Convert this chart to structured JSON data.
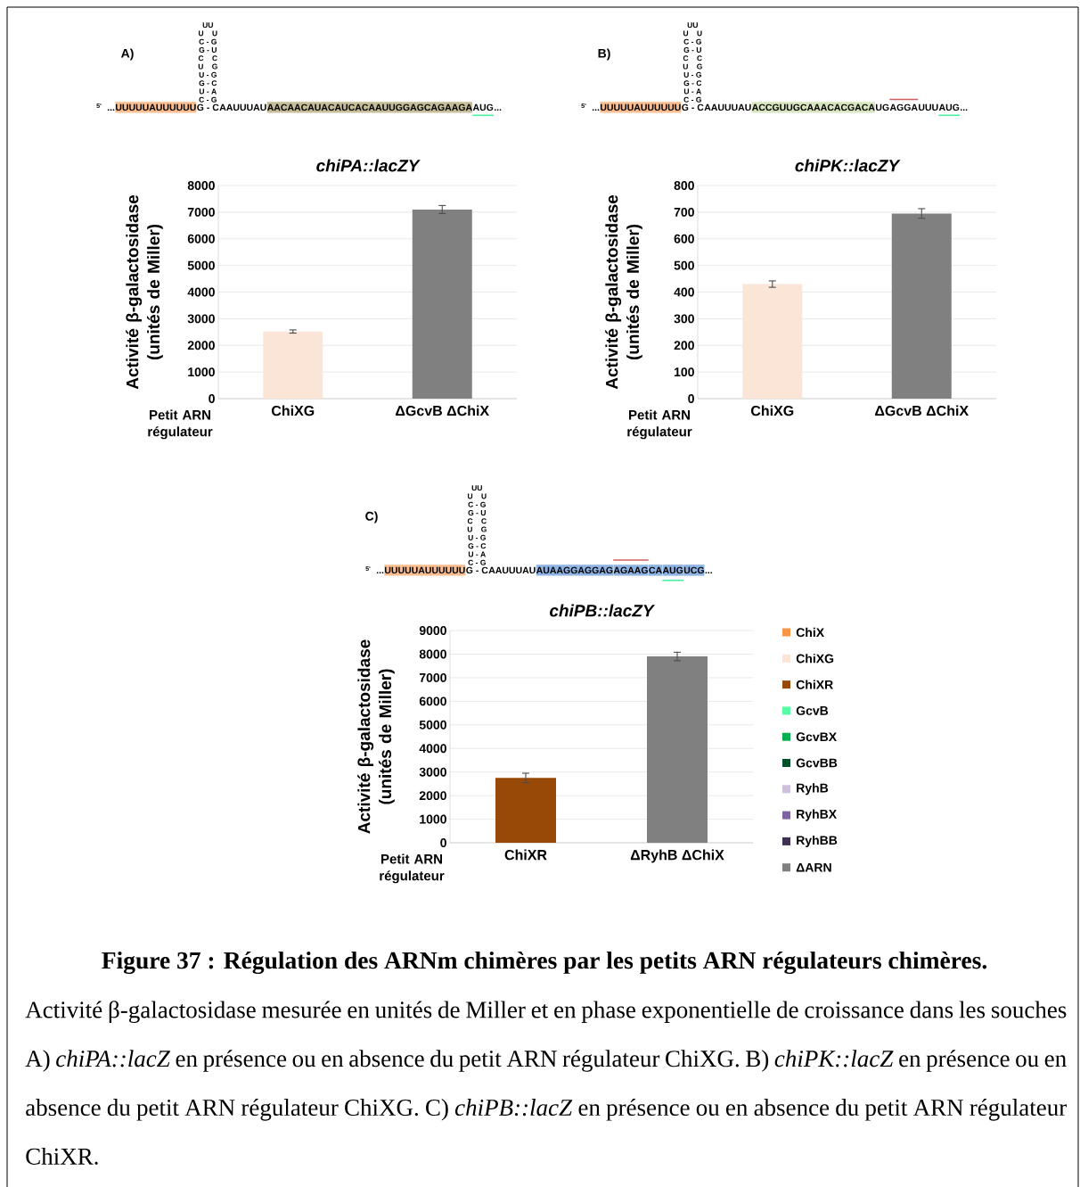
{
  "chart_data": [
    {
      "type": "bar",
      "title": "chiPA::lacZY",
      "xlabel": "Petit ARN régulateur",
      "ylabel": "Activité β-galactosidase (unités de Miller)",
      "categories": [
        "ChiXG",
        "ΔGcvB ΔChiX"
      ],
      "values": [
        2520,
        7100
      ],
      "colors": [
        "#fbe5d6",
        "#808080"
      ],
      "errors": [
        60,
        150
      ],
      "ylim": [
        0,
        8000
      ],
      "yticks": [
        0,
        1000,
        2000,
        3000,
        4000,
        5000,
        6000,
        7000,
        8000
      ],
      "grid": "y",
      "annotations": [
        "A)",
        "UU",
        "U U",
        "C - G",
        "G - U",
        "C C",
        "U G",
        "U - G",
        "G - C",
        "U - A",
        "C - G",
        "5'",
        "...",
        "UUUUUAUUUUUU",
        "G - C",
        "AAUUUAU",
        "AACAACAUACAUCACAAUUGGAGCAGAAGA",
        "AUG",
        "..."
      ]
    },
    {
      "type": "bar",
      "title": "chiPK::lacZY",
      "xlabel": "Petit ARN régulateur",
      "ylabel": "Activité β-galactosidase (unités de Miller)",
      "categories": [
        "ChiXG",
        "ΔGcvB ΔChiX"
      ],
      "values": [
        430,
        695
      ],
      "colors": [
        "#fbe5d6",
        "#808080"
      ],
      "errors": [
        12,
        18
      ],
      "ylim": [
        0,
        800
      ],
      "yticks": [
        0,
        100,
        200,
        300,
        400,
        500,
        600,
        700,
        800
      ],
      "grid": "y",
      "annotations": [
        "B)",
        "UU",
        "U U",
        "C - G",
        "G - U",
        "C C",
        "U G",
        "U - G",
        "G - C",
        "U - A",
        "C - G",
        "5'",
        "...",
        "UUUUUAUUUUUU",
        "G - C",
        "AAUUUAU",
        "ACCGUUGCAAACACGACA",
        "UG",
        "AGGA",
        "UUU",
        "AUG",
        "..."
      ]
    },
    {
      "type": "bar",
      "title": "chiPB::lacZY",
      "xlabel": "Petit ARN régulateur",
      "ylabel": "Activité β-galactosidase (unités de Miller)",
      "categories": [
        "ChiXR",
        "ΔRyhB ΔChiX"
      ],
      "ylim": [
        0,
        9000
      ],
      "yticks": [
        0,
        1000,
        2000,
        3000,
        4000,
        5000,
        6000,
        7000,
        8000,
        9000
      ],
      "grid": "y",
      "legend": "right",
      "series": [
        {
          "name": "ChiX",
          "color": "#f79646",
          "values": [
            null,
            null
          ]
        },
        {
          "name": "ChiXG",
          "color": "#fbe5d6",
          "values": [
            null,
            null
          ]
        },
        {
          "name": "ChiXR",
          "color": "#984807",
          "values": [
            2750,
            null
          ],
          "errors": [
            200,
            null
          ]
        },
        {
          "name": "GcvB",
          "color": "#57fca6",
          "values": [
            null,
            null
          ]
        },
        {
          "name": "GcvBX",
          "color": "#00b050",
          "values": [
            null,
            null
          ]
        },
        {
          "name": "GcvBB",
          "color": "#00502a",
          "values": [
            null,
            null
          ]
        },
        {
          "name": "RyhB",
          "color": "#ccc0da",
          "values": [
            null,
            null
          ]
        },
        {
          "name": "RyhBX",
          "color": "#8064a2",
          "values": [
            null,
            null
          ]
        },
        {
          "name": "RyhBB",
          "color": "#3f3151",
          "values": [
            null,
            null
          ]
        },
        {
          "name": "ΔARN",
          "color": "#808080",
          "values": [
            null,
            7900
          ],
          "errors": [
            null,
            180
          ]
        }
      ],
      "annotations": [
        "C)",
        "UU",
        "U U",
        "C - G",
        "G - U",
        "C C",
        "U G",
        "U - G",
        "G - C",
        "U - A",
        "C - G",
        "5'",
        "...",
        "UUUUUAUUUUUU",
        "G - C",
        "AAUUUAU",
        "AUAAGGAGGAG",
        "AGAAG",
        "CA",
        "AUG",
        "UCG",
        "..."
      ]
    },
    {
      "type": "other",
      "title": "Figure 37 : Régulation des ARNm chimères par les petits ARN régulateurs chimères.",
      "annotations": [
        "Activité β-galactosidase mesurée en unités de Miller et en phase exponentielle de croissance dans les souches A) *chiPA::lacZ* en présence ou en absence du petit ARN régulateur ChiXG. B) *chiPK::lacZ* en présence ou en absence du petit ARN régulateur ChiXG. C) *chiPB::lacZ* en présence ou en absence du petit ARN régulateur ChiXR."
      ]
    }
  ]
}
